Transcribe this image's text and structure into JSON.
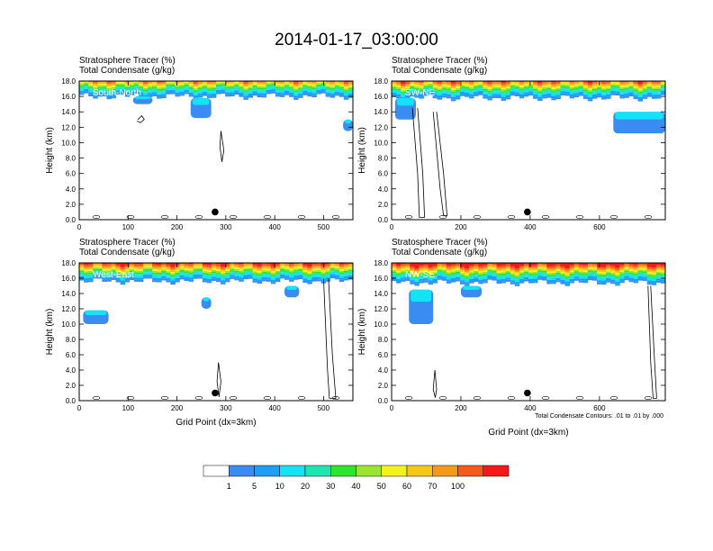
{
  "figure": {
    "title": "2014-01-17_03:00:00",
    "note": "Total Condensate Contours: .01 to .01 by .000"
  },
  "chart_data": [
    {
      "type": "heatmap",
      "panel": "South-North",
      "header_line1": "Stratosphere Tracer   (%)",
      "header_line2": "Total Condensate   (g/kg)",
      "ylabel": "Height (km)",
      "xlabel": "",
      "xlim": [
        0,
        560
      ],
      "ylim": [
        0,
        18
      ],
      "xticks": [
        0,
        100,
        200,
        300,
        400,
        500
      ],
      "yticks": [
        "0.0",
        "2.0",
        "4.0",
        "6.0",
        "8.0",
        "10.0",
        "12.0",
        "14.0",
        "16.0",
        "18.0"
      ],
      "marker": {
        "x": 278,
        "y": 1.0
      },
      "tracer_base_km": 16.0,
      "cloud_patches": [
        [
          110,
          150,
          15.0,
          16.0
        ],
        [
          228,
          270,
          13.2,
          15.8
        ],
        [
          540,
          560,
          11.5,
          13.0
        ]
      ],
      "contours": [
        [
          [
            120,
            13.0
          ],
          [
            128,
            13.5
          ],
          [
            133,
            13.0
          ],
          [
            125,
            12.6
          ],
          [
            118,
            12.8
          ]
        ],
        [
          [
            290,
            11.5
          ],
          [
            296,
            9.0
          ],
          [
            292,
            7.5
          ],
          [
            288,
            9.5
          ],
          [
            290,
            11.5
          ]
        ]
      ],
      "grid": false
    },
    {
      "type": "heatmap",
      "panel": "SW-NE",
      "header_line1": "Stratosphere Tracer   (%)",
      "header_line2": "Total Condensate   (g/kg)",
      "ylabel": "Height (km)",
      "xlabel": "",
      "xlim": [
        0,
        790
      ],
      "ylim": [
        0,
        18
      ],
      "xticks": [
        0,
        200,
        400,
        600
      ],
      "yticks": [
        "0.0",
        "2.0",
        "4.0",
        "6.0",
        "8.0",
        "10.0",
        "12.0",
        "14.0",
        "16.0",
        "18.0"
      ],
      "marker": {
        "x": 392,
        "y": 1.0
      },
      "tracer_base_km": 15.8,
      "cloud_patches": [
        [
          10,
          70,
          13.0,
          15.8
        ],
        [
          640,
          790,
          11.2,
          14.0
        ]
      ],
      "contours": [
        [
          [
            60,
            14.5
          ],
          [
            75,
            6.0
          ],
          [
            80,
            0.3
          ],
          [
            95,
            0.3
          ],
          [
            90,
            6.0
          ],
          [
            75,
            14.5
          ]
        ],
        [
          [
            120,
            14.0
          ],
          [
            140,
            4.0
          ],
          [
            150,
            0.5
          ],
          [
            160,
            0.5
          ],
          [
            150,
            6.0
          ],
          [
            130,
            14.0
          ]
        ]
      ],
      "grid": false
    },
    {
      "type": "heatmap",
      "panel": "West-East",
      "header_line1": "Stratosphere Tracer   (%)",
      "header_line2": "Total Condensate   (g/kg)",
      "ylabel": "Height (km)",
      "xlabel": "Grid Point (dx=3km)",
      "xlim": [
        0,
        560
      ],
      "ylim": [
        0,
        18
      ],
      "xticks": [
        0,
        100,
        200,
        300,
        400,
        500
      ],
      "yticks": [
        "0.0",
        "2.0",
        "4.0",
        "6.0",
        "8.0",
        "10.0",
        "12.0",
        "14.0",
        "16.0",
        "18.0"
      ],
      "marker": {
        "x": 278,
        "y": 1.0
      },
      "tracer_base_km": 15.6,
      "cloud_patches": [
        [
          8,
          60,
          10.0,
          11.8
        ],
        [
          250,
          270,
          12.0,
          13.5
        ],
        [
          420,
          450,
          13.5,
          15.0
        ]
      ],
      "contours": [
        [
          [
            500,
            16.0
          ],
          [
            508,
            4.0
          ],
          [
            512,
            0.3
          ],
          [
            525,
            0.3
          ],
          [
            518,
            6.0
          ],
          [
            510,
            16.0
          ]
        ],
        [
          [
            285,
            5.0
          ],
          [
            290,
            2.5
          ],
          [
            286,
            0.5
          ],
          [
            282,
            2.5
          ],
          [
            285,
            5.0
          ]
        ]
      ],
      "grid": false
    },
    {
      "type": "heatmap",
      "panel": "NW-SE",
      "header_line1": "Stratosphere Tracer   (%)",
      "header_line2": "Total Condensate   (g/kg)",
      "ylabel": "Height (km)",
      "xlabel": "Grid Point (dx=3km)",
      "xlim": [
        0,
        790
      ],
      "ylim": [
        0,
        18
      ],
      "xticks": [
        0,
        200,
        400,
        600
      ],
      "yticks": [
        "0.0",
        "2.0",
        "4.0",
        "6.0",
        "8.0",
        "10.0",
        "12.0",
        "14.0",
        "16.0",
        "18.0"
      ],
      "marker": {
        "x": 392,
        "y": 1.0
      },
      "tracer_base_km": 15.4,
      "cloud_patches": [
        [
          50,
          120,
          10.0,
          14.5
        ],
        [
          200,
          260,
          13.5,
          15.0
        ]
      ],
      "contours": [
        [
          [
            740,
            15.0
          ],
          [
            748,
            5.0
          ],
          [
            755,
            0.3
          ],
          [
            765,
            0.3
          ],
          [
            758,
            6.0
          ],
          [
            748,
            15.0
          ]
        ],
        [
          [
            125,
            4.0
          ],
          [
            130,
            1.5
          ],
          [
            126,
            0.4
          ],
          [
            120,
            1.5
          ],
          [
            125,
            4.0
          ]
        ]
      ],
      "grid": false
    }
  ],
  "colorbar": {
    "colors": [
      "#ffffff",
      "#3a8bf2",
      "#1f9ef5",
      "#14e3f5",
      "#1ee6b2",
      "#2de52d",
      "#9ae62d",
      "#f2f21c",
      "#f5c818",
      "#f59a18",
      "#f55a18",
      "#f51818"
    ],
    "labels": [
      "1",
      "5",
      "10",
      "20",
      "30",
      "40",
      "50",
      "60",
      "70",
      "100"
    ]
  }
}
